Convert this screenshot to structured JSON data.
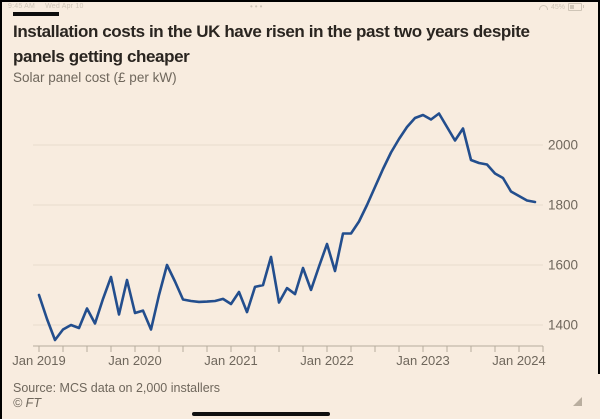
{
  "status_bar": {
    "time": "9:45 AM",
    "date": "Wed Apr 10",
    "center_dots": "•••",
    "battery_pct": "45%"
  },
  "header": {
    "title_line1": "Installation costs in the UK have risen in the past two years despite",
    "title_line2": "panels getting cheaper"
  },
  "footer": {
    "source": "Source: MCS data on 2,000 installers",
    "copyright": "© FT"
  },
  "chart_data": {
    "type": "line",
    "title": "Installation costs in the UK have risen in the past two years despite panels getting cheaper",
    "subtitle": "Solar panel cost (£ per kW)",
    "source": "Source: MCS data on 2,000 installers",
    "frequency": "monthly",
    "x_range": [
      "Jan 2019",
      "Mar 2024"
    ],
    "x_tick_labels": [
      "Jan 2019",
      "Jan 2020",
      "Jan 2021",
      "Jan 2022",
      "Jan 2023",
      "Jan 2024"
    ],
    "y_ticks": [
      1400,
      1600,
      1800,
      2000
    ],
    "ylim": [
      1330,
      2130
    ],
    "grid": "horizontal-only",
    "legend": "none",
    "series": [
      {
        "name": "Solar panel cost (£ per kW)",
        "values": [
          1500,
          1420,
          1350,
          1385,
          1400,
          1390,
          1455,
          1405,
          1487,
          1560,
          1435,
          1550,
          1440,
          1448,
          1385,
          1500,
          1600,
          1545,
          1485,
          1480,
          1477,
          1478,
          1480,
          1487,
          1470,
          1510,
          1443,
          1527,
          1533,
          1627,
          1475,
          1523,
          1503,
          1590,
          1517,
          1595,
          1670,
          1580,
          1705,
          1705,
          1745,
          1800,
          1860,
          1920,
          1975,
          2020,
          2060,
          2090,
          2100,
          2085,
          2105,
          2060,
          2015,
          2055,
          1950,
          1940,
          1935,
          1905,
          1890,
          1845,
          1830,
          1815,
          1810
        ]
      }
    ],
    "colors": {
      "line": "#234e8d",
      "background": "#f8ecdf",
      "gridline": "#e8dccc",
      "axis": "#b6ac9d",
      "label": "#6f675c"
    }
  }
}
